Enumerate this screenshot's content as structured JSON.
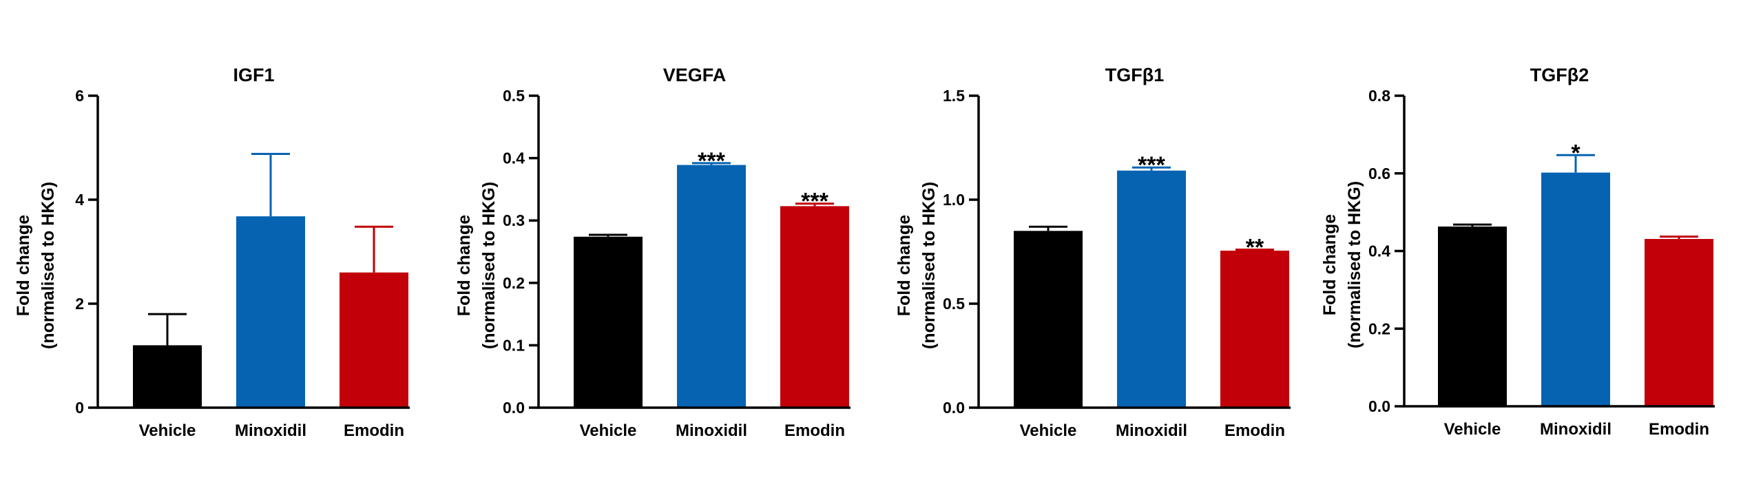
{
  "colors": {
    "Vehicle": "#000000",
    "Minoxidil": "#0563b2",
    "Emodin": "#c10009"
  },
  "chart_data": [
    {
      "type": "bar",
      "title": "IGF1",
      "ylabel_lines": [
        "Fold change",
        "(normalised to HKG)"
      ],
      "categories": [
        "Vehicle",
        "Minoxidil",
        "Emodin"
      ],
      "values": [
        1.2,
        3.68,
        2.6
      ],
      "errors": [
        0.6,
        1.2,
        0.88
      ],
      "significance": [
        "",
        "",
        ""
      ],
      "ylim": [
        0,
        6
      ],
      "yticks": [
        0,
        2,
        4,
        6
      ],
      "ytick_labels": [
        "0",
        "2",
        "4",
        "6"
      ]
    },
    {
      "type": "bar",
      "title": "VEGFA",
      "ylabel_lines": [
        "Fold change",
        "(normalised to HKG)"
      ],
      "categories": [
        "Vehicle",
        "Minoxidil",
        "Emodin"
      ],
      "values": [
        0.274,
        0.389,
        0.323
      ],
      "errors": [
        0.003,
        0.003,
        0.004
      ],
      "significance": [
        "",
        "***",
        "***"
      ],
      "ylim": [
        0,
        0.5
      ],
      "yticks": [
        0,
        0.1,
        0.2,
        0.3,
        0.4,
        0.5
      ],
      "ytick_labels": [
        "0.0",
        "0.1",
        "0.2",
        "0.3",
        "0.4",
        "0.5"
      ]
    },
    {
      "type": "bar",
      "title": "TGFβ1",
      "ylabel_lines": [
        "Fold change",
        "(normalised to HKG)"
      ],
      "categories": [
        "Vehicle",
        "Minoxidil",
        "Emodin"
      ],
      "values": [
        0.85,
        1.14,
        0.755
      ],
      "errors": [
        0.02,
        0.015,
        0.005
      ],
      "significance": [
        "",
        "***",
        "**"
      ],
      "ylim": [
        0,
        1.5
      ],
      "yticks": [
        0,
        0.5,
        1.0,
        1.5
      ],
      "ytick_labels": [
        "0.0",
        "0.5",
        "1.0",
        "1.5"
      ]
    },
    {
      "type": "bar",
      "title": "TGFβ2",
      "ylabel_lines": [
        "Fold change",
        "(normalised to HKG)"
      ],
      "categories": [
        "Vehicle",
        "Minoxidil",
        "Emodin"
      ],
      "values": [
        0.463,
        0.602,
        0.431
      ],
      "errors": [
        0.005,
        0.045,
        0.006
      ],
      "significance": [
        "",
        "*",
        ""
      ],
      "ylim": [
        0,
        0.8
      ],
      "yticks": [
        0,
        0.2,
        0.4,
        0.6,
        0.8
      ],
      "ytick_labels": [
        "0.0",
        "0.2",
        "0.4",
        "0.6",
        "0.8"
      ]
    }
  ]
}
